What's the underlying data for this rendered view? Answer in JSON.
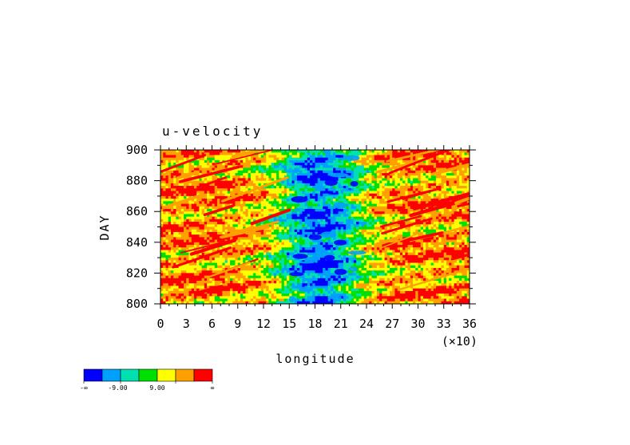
{
  "chart_data": {
    "type": "heatmap",
    "title": "u-velocity",
    "xlabel": "longitude",
    "ylabel": "DAY",
    "x_multiplier_label": "(×10)",
    "xlim": [
      0,
      36
    ],
    "ylim": [
      800,
      900
    ],
    "x_ticks": [
      0,
      3,
      6,
      9,
      12,
      15,
      18,
      21,
      24,
      27,
      30,
      33,
      36
    ],
    "y_ticks": [
      800,
      820,
      840,
      860,
      880,
      900
    ],
    "grid": false,
    "colorbar": {
      "placement": "bottom-left",
      "colors": [
        "#0000ff",
        "#00a0ff",
        "#00e0b0",
        "#00e000",
        "#ffff00",
        "#ffa000",
        "#ff0000"
      ],
      "tick_labels": [
        "-∞",
        "-9.00",
        "9.00",
        "∞"
      ]
    }
  }
}
